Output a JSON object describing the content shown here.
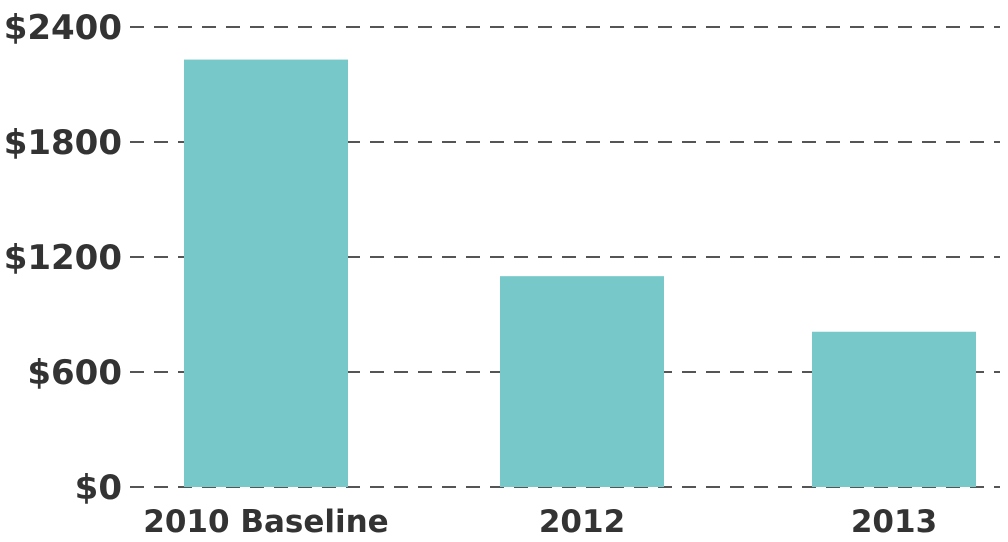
{
  "chart_data": {
    "type": "bar",
    "categories": [
      "2010 Baseline",
      "2012",
      "2013"
    ],
    "values": [
      2230,
      1100,
      810
    ],
    "title": "",
    "xlabel": "",
    "ylabel": "",
    "ylim": [
      0,
      2400
    ],
    "yticks": [
      0,
      600,
      1200,
      1800,
      2400
    ],
    "ytick_labels": [
      "$0",
      "$600",
      "$1200",
      "$1800",
      "$2400"
    ],
    "grid": true,
    "grid_style": "dashed",
    "legend": "none",
    "bar_color": "#77c9c9"
  }
}
